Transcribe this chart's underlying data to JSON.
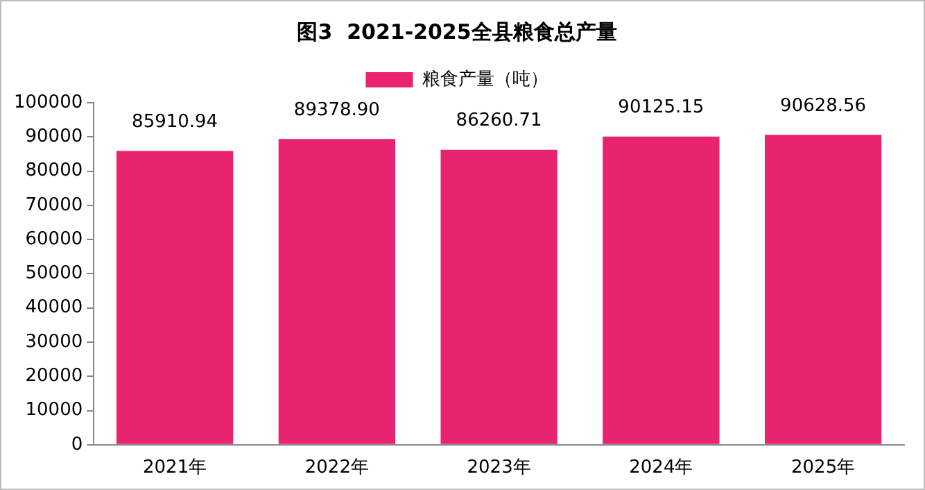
{
  "chart_data": {
    "type": "bar",
    "title": "图3  2021-2025全县粮食总产量",
    "categories": [
      "2021年",
      "2022年",
      "2023年",
      "2024年",
      "2025年"
    ],
    "series": [
      {
        "name": "粮食产量（吨）",
        "color": "#e8236f",
        "values": [
          85910.94,
          89378.9,
          86260.71,
          90125.15,
          90628.56
        ],
        "value_labels": [
          "85910.94",
          "89378.90",
          "86260.71",
          "90125.15",
          "90628.56"
        ]
      }
    ],
    "ylim": [
      0,
      100000
    ],
    "yticks": [
      0,
      10000,
      20000,
      30000,
      40000,
      50000,
      60000,
      70000,
      80000,
      90000,
      100000
    ],
    "grid": false,
    "legend": "top"
  }
}
